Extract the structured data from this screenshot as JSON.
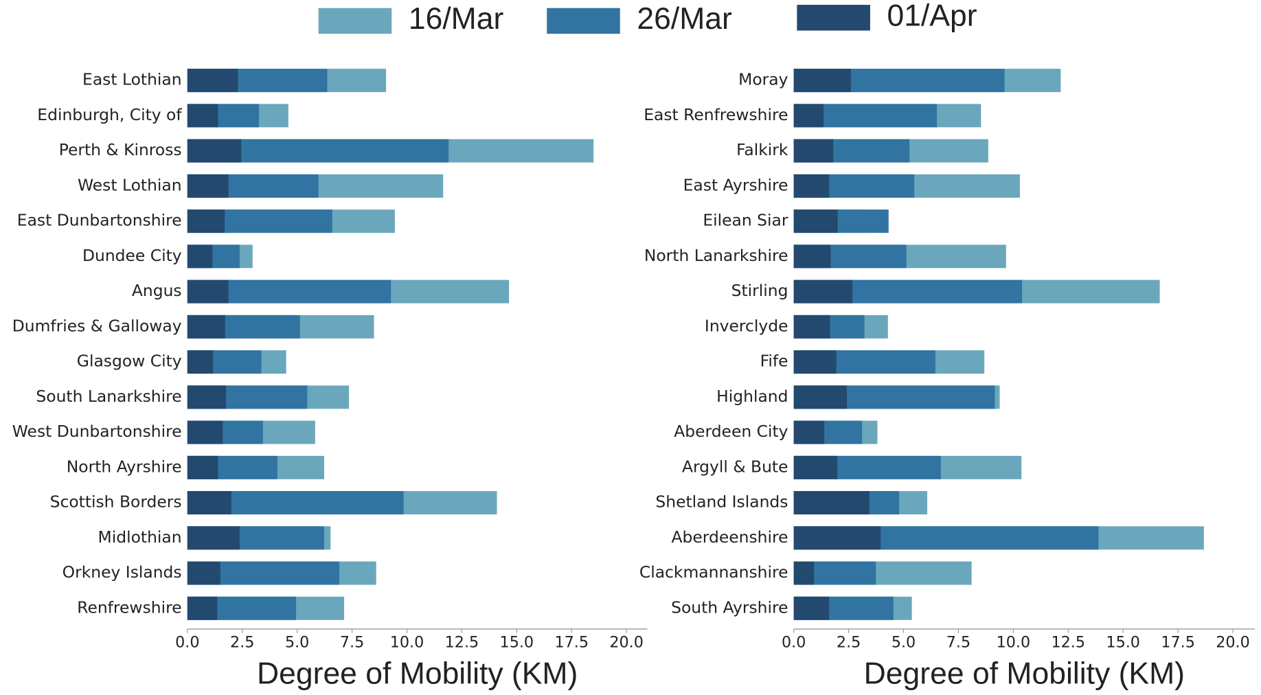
{
  "chart_data": [
    {
      "type": "barh",
      "xlabel": "Degree of Mobility (KM)",
      "categories": [
        "East Lothian",
        "Edinburgh, City of",
        "Perth & Kinross",
        "West Lothian",
        "East Dunbartonshire",
        "Dundee City",
        "Angus",
        "Dumfries & Galloway",
        "Glasgow City",
        "South Lanarkshire",
        "West Dunbartonshire",
        "North Ayrshire",
        "Scottish Borders",
        "Midlothian",
        "Orkney Islands",
        "Renfrewshire"
      ],
      "series": [
        {
          "name": "16/Mar",
          "color": "#6aa7bc",
          "values": [
            9.05,
            4.6,
            18.5,
            11.65,
            9.45,
            2.97,
            14.65,
            8.5,
            4.5,
            7.36,
            5.82,
            6.23,
            14.1,
            6.52,
            8.6,
            7.14
          ]
        },
        {
          "name": "26/Mar",
          "color": "#3174a1",
          "values": [
            6.37,
            3.26,
            11.9,
            5.97,
            6.6,
            2.38,
            9.27,
            5.13,
            3.37,
            5.46,
            3.44,
            4.1,
            9.85,
            6.23,
            6.92,
            4.95
          ]
        },
        {
          "name": "01/Apr",
          "color": "#23496f",
          "values": [
            2.3,
            1.4,
            2.45,
            1.87,
            1.7,
            1.14,
            1.87,
            1.72,
            1.17,
            1.76,
            1.61,
            1.4,
            2.0,
            2.38,
            1.5,
            1.36
          ]
        }
      ],
      "xlim": [
        0,
        20.95
      ],
      "xticks": [
        {
          "value": 0,
          "label": "0.0"
        },
        2.5,
        {
          "value": 5,
          "label": "5.0"
        },
        7.5,
        {
          "value": 10,
          "label": "10.0"
        },
        12.5,
        {
          "value": 15,
          "label": "15.0"
        },
        17.5,
        {
          "value": 20,
          "label": "20.0"
        }
      ]
    },
    {
      "type": "barh",
      "xlabel": "Degree of Mobility (KM)",
      "categories": [
        "Moray",
        "East Renfrewshire",
        "Falkirk",
        "East Ayrshire",
        "Eilean Siar",
        "North Lanarkshire",
        "Stirling",
        "Inverclyde",
        "Fife",
        "Highland",
        "Aberdeen City",
        "Argyll & Bute",
        "Shetland Islands",
        "Aberdeenshire",
        "Clackmannanshire",
        "South Ayrshire"
      ],
      "series": [
        {
          "name": "16/Mar",
          "color": "#6aa7bc",
          "values": [
            12.16,
            8.53,
            8.86,
            10.3,
            3.22,
            9.67,
            16.67,
            4.29,
            8.68,
            9.38,
            3.81,
            10.37,
            6.08,
            18.68,
            8.1,
            5.38
          ]
        },
        {
          "name": "26/Mar",
          "color": "#3174a1",
          "values": [
            9.6,
            6.52,
            5.27,
            5.49,
            4.32,
            5.13,
            10.4,
            3.22,
            6.45,
            9.16,
            3.11,
            6.7,
            4.8,
            13.88,
            3.74,
            4.54
          ]
        },
        {
          "name": "01/Apr",
          "color": "#23496f",
          "values": [
            2.6,
            1.36,
            1.8,
            1.61,
            2.0,
            1.68,
            2.67,
            1.65,
            1.94,
            2.42,
            1.39,
            1.98,
            3.44,
            3.96,
            0.92,
            1.61
          ]
        }
      ],
      "xlim": [
        0,
        21
      ],
      "xticks": [
        {
          "value": 0,
          "label": "0.0"
        },
        2.5,
        {
          "value": 5,
          "label": "5.0"
        },
        7.5,
        {
          "value": 10,
          "label": "10.0"
        },
        12.5,
        {
          "value": 15,
          "label": "15.0"
        },
        17.5,
        {
          "value": 20,
          "label": "20.0"
        }
      ]
    }
  ]
}
